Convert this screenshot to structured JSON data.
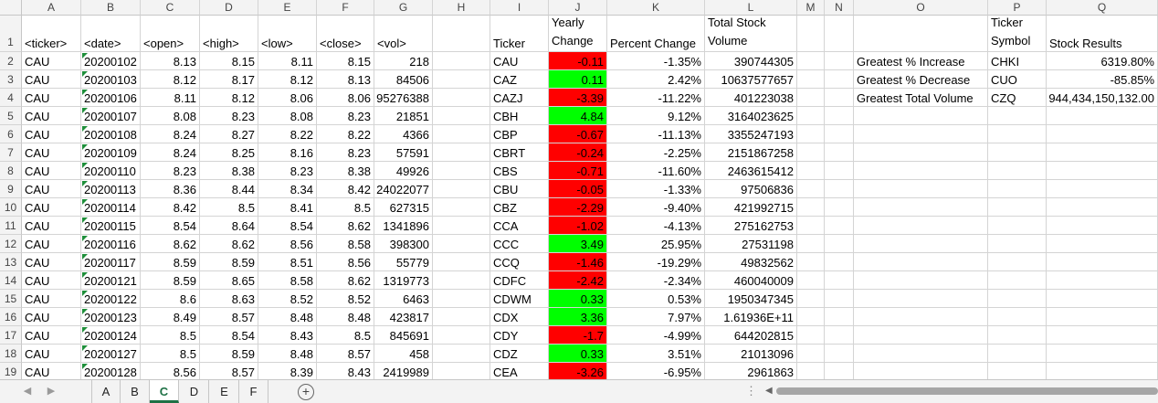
{
  "columns": [
    "A",
    "B",
    "C",
    "D",
    "E",
    "F",
    "G",
    "H",
    "I",
    "J",
    "K",
    "L",
    "M",
    "N",
    "O",
    "P",
    "Q"
  ],
  "row_numbers": [
    "1",
    "2",
    "3",
    "4",
    "5",
    "6",
    "7",
    "8",
    "9",
    "10",
    "11",
    "12",
    "13",
    "14",
    "15",
    "16",
    "17",
    "18",
    "19"
  ],
  "headers": {
    "A": "<ticker>",
    "B": "<date>",
    "C": "<open>",
    "D": "<high>",
    "E": "<low>",
    "F": "<close>",
    "G": "<vol>",
    "I": "Ticker",
    "J": [
      "Yearly",
      "Change"
    ],
    "K": "Percent Change",
    "L": [
      "Total Stock",
      "Volume"
    ],
    "P": [
      "Ticker",
      "Symbol"
    ],
    "Q": "Stock Results"
  },
  "raw_rows": [
    [
      "CAU",
      "20200102",
      "8.13",
      "8.15",
      "8.11",
      "8.15",
      "218"
    ],
    [
      "CAU",
      "20200103",
      "8.12",
      "8.17",
      "8.12",
      "8.13",
      "84506"
    ],
    [
      "CAU",
      "20200106",
      "8.11",
      "8.12",
      "8.06",
      "8.06",
      "95276388"
    ],
    [
      "CAU",
      "20200107",
      "8.08",
      "8.23",
      "8.08",
      "8.23",
      "21851"
    ],
    [
      "CAU",
      "20200108",
      "8.24",
      "8.27",
      "8.22",
      "8.22",
      "4366"
    ],
    [
      "CAU",
      "20200109",
      "8.24",
      "8.25",
      "8.16",
      "8.23",
      "57591"
    ],
    [
      "CAU",
      "20200110",
      "8.23",
      "8.38",
      "8.23",
      "8.38",
      "49926"
    ],
    [
      "CAU",
      "20200113",
      "8.36",
      "8.44",
      "8.34",
      "8.42",
      "24022077"
    ],
    [
      "CAU",
      "20200114",
      "8.42",
      "8.5",
      "8.41",
      "8.5",
      "627315"
    ],
    [
      "CAU",
      "20200115",
      "8.54",
      "8.64",
      "8.54",
      "8.62",
      "1341896"
    ],
    [
      "CAU",
      "20200116",
      "8.62",
      "8.62",
      "8.56",
      "8.58",
      "398300"
    ],
    [
      "CAU",
      "20200117",
      "8.59",
      "8.59",
      "8.51",
      "8.56",
      "55779"
    ],
    [
      "CAU",
      "20200121",
      "8.59",
      "8.65",
      "8.58",
      "8.62",
      "1319773"
    ],
    [
      "CAU",
      "20200122",
      "8.6",
      "8.63",
      "8.52",
      "8.52",
      "6463"
    ],
    [
      "CAU",
      "20200123",
      "8.49",
      "8.57",
      "8.48",
      "8.48",
      "423817"
    ],
    [
      "CAU",
      "20200124",
      "8.5",
      "8.54",
      "8.43",
      "8.5",
      "845691"
    ],
    [
      "CAU",
      "20200127",
      "8.5",
      "8.59",
      "8.48",
      "8.57",
      "458"
    ],
    [
      "CAU",
      "20200128",
      "8.56",
      "8.57",
      "8.39",
      "8.43",
      "2419989"
    ]
  ],
  "summary_rows": [
    {
      "ticker": "CAU",
      "change": "-0.11",
      "percent": "-1.35%",
      "volume": "390744305",
      "status": "negative"
    },
    {
      "ticker": "CAZ",
      "change": "0.11",
      "percent": "2.42%",
      "volume": "10637577657",
      "status": "positive"
    },
    {
      "ticker": "CAZJ",
      "change": "-3.39",
      "percent": "-11.22%",
      "volume": "401223038",
      "status": "negative"
    },
    {
      "ticker": "CBH",
      "change": "4.84",
      "percent": "9.12%",
      "volume": "3164023625",
      "status": "positive"
    },
    {
      "ticker": "CBP",
      "change": "-0.67",
      "percent": "-11.13%",
      "volume": "3355247193",
      "status": "negative"
    },
    {
      "ticker": "CBRT",
      "change": "-0.24",
      "percent": "-2.25%",
      "volume": "2151867258",
      "status": "negative"
    },
    {
      "ticker": "CBS",
      "change": "-0.71",
      "percent": "-11.60%",
      "volume": "2463615412",
      "status": "negative"
    },
    {
      "ticker": "CBU",
      "change": "-0.05",
      "percent": "-1.33%",
      "volume": "97506836",
      "status": "negative"
    },
    {
      "ticker": "CBZ",
      "change": "-2.29",
      "percent": "-9.40%",
      "volume": "421992715",
      "status": "negative"
    },
    {
      "ticker": "CCA",
      "change": "-1.02",
      "percent": "-4.13%",
      "volume": "275162753",
      "status": "negative"
    },
    {
      "ticker": "CCC",
      "change": "3.49",
      "percent": "25.95%",
      "volume": "27531198",
      "status": "positive"
    },
    {
      "ticker": "CCQ",
      "change": "-1.46",
      "percent": "-19.29%",
      "volume": "49832562",
      "status": "negative"
    },
    {
      "ticker": "CDFC",
      "change": "-2.42",
      "percent": "-2.34%",
      "volume": "460040009",
      "status": "negative"
    },
    {
      "ticker": "CDWM",
      "change": "0.33",
      "percent": "0.53%",
      "volume": "1950347345",
      "status": "positive"
    },
    {
      "ticker": "CDX",
      "change": "3.36",
      "percent": "7.97%",
      "volume": "1.61936E+11",
      "status": "positive"
    },
    {
      "ticker": "CDY",
      "change": "-1.7",
      "percent": "-4.99%",
      "volume": "644202815",
      "status": "negative"
    },
    {
      "ticker": "CDZ",
      "change": "0.33",
      "percent": "3.51%",
      "volume": "21013096",
      "status": "positive"
    },
    {
      "ticker": "CEA",
      "change": "-3.26",
      "percent": "-6.95%",
      "volume": "2961863",
      "status": "negative"
    }
  ],
  "results": [
    {
      "label": "Greatest % Increase",
      "ticker": "CHKI",
      "value": "6319.80%"
    },
    {
      "label": "Greatest % Decrease",
      "ticker": "CUO",
      "value": "-85.85%"
    },
    {
      "label": "Greatest Total Volume",
      "ticker": "CZQ",
      "value": "944,434,150,132.00"
    }
  ],
  "sheet_tabs": [
    "A",
    "B",
    "C",
    "D",
    "E",
    "F"
  ],
  "active_tab": "C",
  "colors": {
    "positive": "#00ff00",
    "negative": "#ff0000",
    "accent": "#1e7145"
  },
  "icons": {
    "add_sheet": "plus-circle-icon",
    "nav_prev": "chevron-left-icon",
    "nav_next": "chevron-right-icon"
  }
}
